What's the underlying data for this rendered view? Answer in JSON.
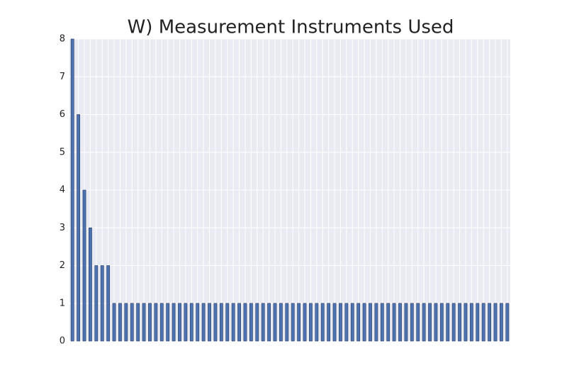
{
  "chart_data": {
    "type": "bar",
    "title": "W) Measurement Instruments Used",
    "categories": [
      null,
      null,
      null,
      null,
      null,
      null,
      null,
      null,
      null,
      null,
      null,
      null,
      null,
      null,
      null,
      null,
      null,
      null,
      null,
      null,
      null,
      null,
      null,
      null,
      null,
      null,
      null,
      null,
      null,
      null,
      null,
      null,
      null,
      null,
      null,
      null,
      null,
      null,
      null,
      null,
      null,
      null,
      null,
      null,
      null,
      null,
      null,
      null,
      null,
      null,
      null,
      null,
      null,
      null,
      null,
      null,
      null,
      null,
      null,
      null,
      null,
      null,
      null,
      null,
      null,
      null,
      null,
      null,
      null,
      null,
      null,
      null,
      null,
      null
    ],
    "values": [
      8,
      6,
      4,
      3,
      2,
      2,
      2,
      1,
      1,
      1,
      1,
      1,
      1,
      1,
      1,
      1,
      1,
      1,
      1,
      1,
      1,
      1,
      1,
      1,
      1,
      1,
      1,
      1,
      1,
      1,
      1,
      1,
      1,
      1,
      1,
      1,
      1,
      1,
      1,
      1,
      1,
      1,
      1,
      1,
      1,
      1,
      1,
      1,
      1,
      1,
      1,
      1,
      1,
      1,
      1,
      1,
      1,
      1,
      1,
      1,
      1,
      1,
      1,
      1,
      1,
      1,
      1,
      1,
      1,
      1,
      1,
      1,
      1,
      1
    ],
    "color": "#4c72b0",
    "ylim": [
      0,
      8
    ],
    "yticks": [
      0,
      1,
      2,
      3,
      4,
      5,
      6,
      7,
      8
    ],
    "grid": true
  }
}
